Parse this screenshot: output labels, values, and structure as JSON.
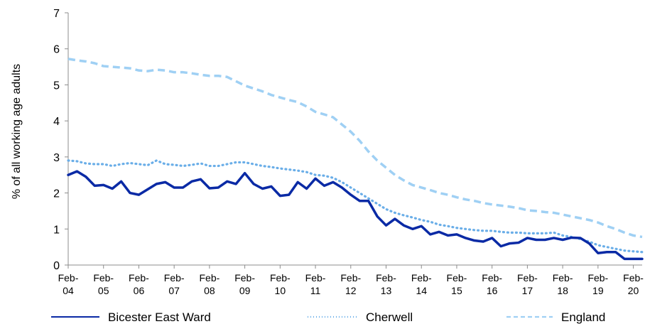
{
  "chart_data": {
    "type": "line",
    "ylabel": "% of all working age adults",
    "ylim": [
      0,
      7
    ],
    "yticks": [
      0,
      1,
      2,
      3,
      4,
      5,
      6,
      7
    ],
    "xticks": [
      "Feb-\n04",
      "Feb-\n05",
      "Feb-\n06",
      "Feb-\n07",
      "Feb-\n08",
      "Feb-\n09",
      "Feb-\n10",
      "Feb-\n11",
      "Feb-\n12",
      "Feb-\n13",
      "Feb-\n14",
      "Feb-\n15",
      "Feb-\n16",
      "Feb-\n17",
      "Feb-\n18",
      "Feb-\n19",
      "Feb-\n20"
    ],
    "x_start": "Feb-04",
    "x_step": "quarter",
    "grid": false,
    "legend_position": "bottom",
    "series": [
      {
        "name": "Bicester East Ward",
        "color": "#0a2aa5",
        "style": "solid",
        "values": [
          2.5,
          2.6,
          2.45,
          2.2,
          2.22,
          2.12,
          2.32,
          2.0,
          1.95,
          2.1,
          2.25,
          2.3,
          2.15,
          2.15,
          2.32,
          2.38,
          2.13,
          2.15,
          2.32,
          2.25,
          2.55,
          2.25,
          2.12,
          2.18,
          1.92,
          1.95,
          2.3,
          2.12,
          2.4,
          2.2,
          2.3,
          2.15,
          1.95,
          1.78,
          1.78,
          1.35,
          1.1,
          1.28,
          1.1,
          1.0,
          1.08,
          0.85,
          0.92,
          0.82,
          0.85,
          0.75,
          0.68,
          0.65,
          0.75,
          0.52,
          0.6,
          0.62,
          0.75,
          0.7,
          0.7,
          0.75,
          0.7,
          0.76,
          0.75,
          0.6,
          0.33,
          0.36,
          0.36,
          0.17,
          0.17,
          0.17
        ]
      },
      {
        "name": "Cherwell",
        "color": "#6aaee8",
        "style": "dotted",
        "values": [
          2.9,
          2.88,
          2.82,
          2.8,
          2.8,
          2.75,
          2.8,
          2.83,
          2.8,
          2.77,
          2.9,
          2.8,
          2.78,
          2.75,
          2.78,
          2.82,
          2.75,
          2.75,
          2.8,
          2.85,
          2.85,
          2.8,
          2.75,
          2.72,
          2.68,
          2.65,
          2.62,
          2.58,
          2.5,
          2.48,
          2.42,
          2.3,
          2.15,
          2.0,
          1.85,
          1.7,
          1.55,
          1.45,
          1.38,
          1.32,
          1.25,
          1.2,
          1.12,
          1.08,
          1.03,
          1.0,
          0.97,
          0.95,
          0.95,
          0.92,
          0.9,
          0.9,
          0.88,
          0.88,
          0.88,
          0.9,
          0.82,
          0.78,
          0.72,
          0.65,
          0.55,
          0.5,
          0.45,
          0.4,
          0.38,
          0.36
        ]
      },
      {
        "name": "England",
        "color": "#9fd0f4",
        "style": "dashed",
        "values": [
          5.72,
          5.68,
          5.65,
          5.6,
          5.52,
          5.5,
          5.48,
          5.46,
          5.4,
          5.38,
          5.42,
          5.4,
          5.35,
          5.35,
          5.32,
          5.28,
          5.25,
          5.25,
          5.22,
          5.1,
          4.98,
          4.9,
          4.82,
          4.72,
          4.65,
          4.58,
          4.52,
          4.4,
          4.25,
          4.18,
          4.1,
          3.9,
          3.7,
          3.45,
          3.15,
          2.9,
          2.7,
          2.5,
          2.35,
          2.22,
          2.15,
          2.08,
          2.0,
          1.95,
          1.88,
          1.82,
          1.78,
          1.72,
          1.68,
          1.65,
          1.62,
          1.58,
          1.52,
          1.5,
          1.47,
          1.45,
          1.4,
          1.35,
          1.3,
          1.25,
          1.18,
          1.08,
          1.0,
          0.9,
          0.82,
          0.78
        ]
      }
    ]
  }
}
